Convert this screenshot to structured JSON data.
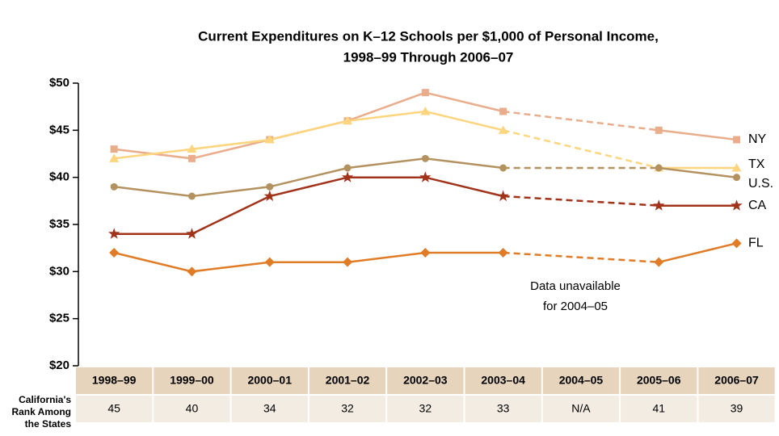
{
  "chart_data": {
    "type": "line",
    "title": [
      "Current Expenditures on K–12 Schools per $1,000 of Personal Income,",
      "1998–99 Through 2006–07"
    ],
    "categories": [
      "1998–99",
      "1999–00",
      "2000–01",
      "2001–02",
      "2002–03",
      "2003–04",
      "2004–05",
      "2005–06",
      "2006–07"
    ],
    "series": [
      {
        "name": "NY",
        "color": "#e9ad8c",
        "marker": "square",
        "values": [
          43,
          42,
          44,
          46,
          49,
          47,
          null,
          45,
          44
        ]
      },
      {
        "name": "TX",
        "color": "#fcd57e",
        "marker": "triangle",
        "values": [
          42,
          43,
          44,
          46,
          47,
          45,
          null,
          41,
          41
        ]
      },
      {
        "name": "U.S.",
        "color": "#b3925f",
        "marker": "circle",
        "values": [
          39,
          38,
          39,
          41,
          42,
          41,
          null,
          41,
          40
        ]
      },
      {
        "name": "CA",
        "color": "#a2331b",
        "marker": "star",
        "values": [
          34,
          34,
          38,
          40,
          40,
          38,
          null,
          37,
          37
        ]
      },
      {
        "name": "FL",
        "color": "#e07b26",
        "marker": "diamond",
        "values": [
          32,
          30,
          31,
          31,
          32,
          32,
          null,
          31,
          33
        ]
      }
    ],
    "ylim": [
      20,
      50
    ],
    "yticks": [
      {
        "value": 20,
        "label": "$20"
      },
      {
        "value": 25,
        "label": "$25"
      },
      {
        "value": 30,
        "label": "$30"
      },
      {
        "value": 35,
        "label": "$35"
      },
      {
        "value": 40,
        "label": "$40"
      },
      {
        "value": 45,
        "label": "$45"
      },
      {
        "value": 50,
        "label": "$50"
      }
    ],
    "annotation": [
      "Data unavailable",
      "for 2004–05"
    ],
    "rank_label": [
      "California's",
      "Rank Among",
      "the States"
    ],
    "ranks": [
      45,
      40,
      34,
      32,
      32,
      33,
      "N/A",
      41,
      39
    ]
  }
}
